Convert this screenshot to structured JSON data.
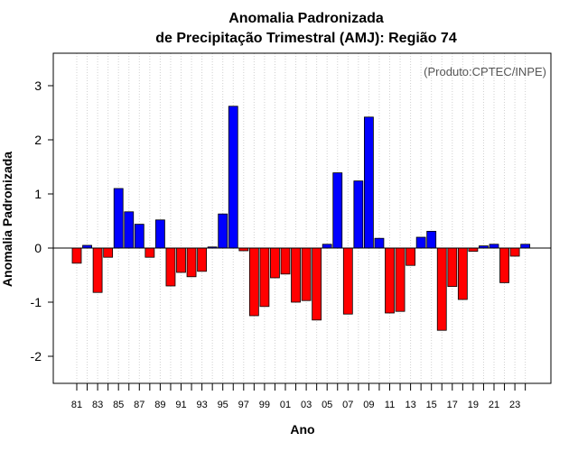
{
  "chart_data": {
    "type": "bar",
    "title": "Anomalia Padronizada",
    "subtitle": "de Precipitação Trimestral (AMJ): Região 74",
    "xlabel": "Ano",
    "ylabel": "Anomalia Padronizada",
    "credit": "(Produto:CPTEC/INPE)",
    "ylim": [
      -2.5,
      3.6
    ],
    "yticks": [
      "-2",
      "-1",
      "0",
      "1",
      "2",
      "3"
    ],
    "ytick_values": [
      -2,
      -1,
      0,
      1,
      2,
      3
    ],
    "xtick_labels": [
      "81",
      "83",
      "85",
      "87",
      "89",
      "91",
      "93",
      "95",
      "97",
      "99",
      "01",
      "03",
      "05",
      "07",
      "09",
      "11",
      "13",
      "15",
      "17",
      "19",
      "21",
      "23"
    ],
    "grid": "vertical dotted",
    "positive_color": "#0000ff",
    "negative_color": "#ff0000",
    "categories": [
      "1981",
      "1982",
      "1983",
      "1984",
      "1985",
      "1986",
      "1987",
      "1988",
      "1989",
      "1990",
      "1991",
      "1992",
      "1993",
      "1994",
      "1995",
      "1996",
      "1997",
      "1998",
      "1999",
      "2000",
      "2001",
      "2002",
      "2003",
      "2004",
      "2005",
      "2006",
      "2007",
      "2008",
      "2009",
      "2010",
      "2011",
      "2012",
      "2013",
      "2014",
      "2015",
      "2016",
      "2017",
      "2018",
      "2019",
      "2020",
      "2021",
      "2022",
      "2023",
      "2024"
    ],
    "values": [
      -0.28,
      0.05,
      -0.82,
      -0.17,
      1.1,
      0.67,
      0.44,
      -0.17,
      0.52,
      -0.7,
      -0.45,
      -0.53,
      -0.43,
      0.02,
      0.63,
      2.62,
      -0.05,
      -1.25,
      -1.08,
      -0.55,
      -0.48,
      -1.0,
      -0.97,
      -1.33,
      0.07,
      1.39,
      -1.22,
      1.24,
      2.42,
      0.18,
      -1.2,
      -1.17,
      -0.32,
      0.2,
      0.31,
      -1.52,
      -0.71,
      -0.95,
      -0.06,
      0.04,
      0.07,
      -0.64,
      -0.15,
      0.07
    ]
  }
}
